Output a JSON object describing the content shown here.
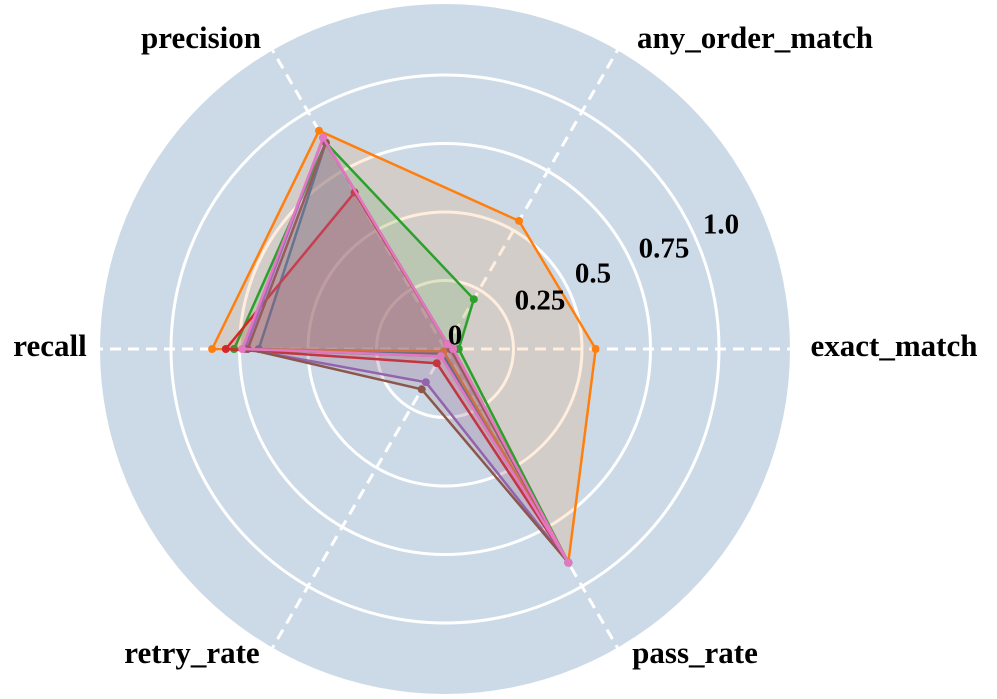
{
  "chart_data": {
    "type": "radar",
    "axes": [
      "exact_match",
      "any_order_match",
      "precision",
      "recall",
      "retry_rate",
      "pass_rate"
    ],
    "r_ticks": [
      0,
      0.25,
      0.5,
      0.75,
      1.0
    ],
    "r_tick_labels": [
      "0",
      "0.25",
      "0.5",
      "0.75",
      "1.0"
    ],
    "r_range": [
      0,
      1.0
    ],
    "grid": true,
    "background_color": "#ccdae8",
    "series": [
      {
        "color": "#1f77b4",
        "values": [
          0.02,
          0.02,
          0.87,
          0.68,
          0.02,
          0.9
        ]
      },
      {
        "color": "#ff7f0e",
        "values": [
          0.55,
          0.54,
          0.92,
          0.85,
          0.01,
          0.9
        ]
      },
      {
        "color": "#2ca02c",
        "values": [
          0.05,
          0.21,
          0.87,
          0.77,
          0.03,
          0.9
        ]
      },
      {
        "color": "#d62728",
        "values": [
          0.03,
          0.02,
          0.66,
          0.8,
          0.06,
          0.9
        ]
      },
      {
        "color": "#9467bd",
        "values": [
          0.02,
          0.02,
          0.89,
          0.73,
          0.14,
          0.9
        ]
      },
      {
        "color": "#8c564b",
        "values": [
          0.02,
          0.02,
          0.87,
          0.72,
          0.17,
          0.9
        ]
      },
      {
        "color": "#e377c2",
        "values": [
          0.03,
          0.02,
          0.89,
          0.74,
          0.03,
          0.9
        ]
      }
    ]
  }
}
